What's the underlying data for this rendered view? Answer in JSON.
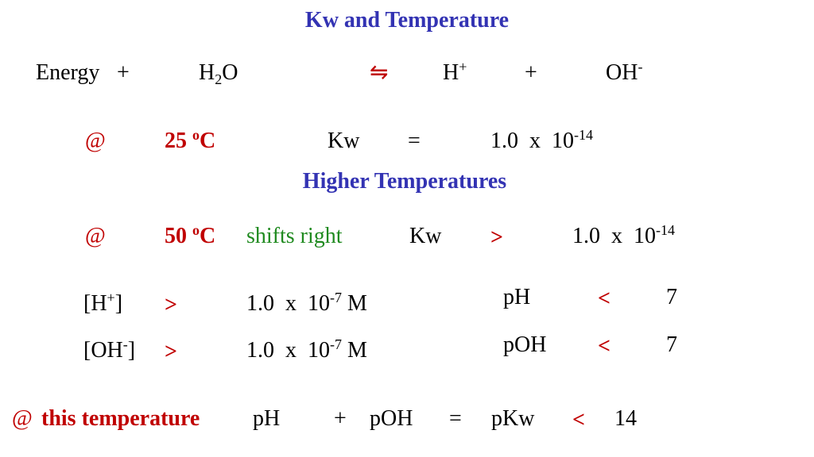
{
  "title": "Kw and Temperature",
  "equation": {
    "energy": "Energy",
    "plus1": "+",
    "water": [
      "H",
      "2",
      "O"
    ],
    "arrow": "⇋",
    "hydrogen": [
      "H",
      "+"
    ],
    "plus2": "+",
    "hydroxide": [
      "OH",
      "-"
    ]
  },
  "row_25": {
    "at": "@",
    "temp": [
      "25 ",
      "o",
      "C"
    ],
    "kw": "Kw",
    "op": "=",
    "value": [
      "1.0  x  10",
      "-14"
    ]
  },
  "subtitle": "Higher Temperatures",
  "row_50": {
    "at": "@",
    "temp": [
      "50 ",
      "o",
      "C"
    ],
    "note": "shifts right",
    "kw": "Kw",
    "op": ">",
    "value": [
      "1.0  x  10",
      "-14"
    ]
  },
  "concentrations": [
    {
      "ion": [
        "[H",
        "+",
        "]"
      ],
      "op": ">",
      "value": [
        "1.0  x  10",
        "-7",
        " M"
      ],
      "p_label": "pH",
      "p_op": "<",
      "p_value": "7"
    },
    {
      "ion": [
        "[OH",
        "-",
        "]"
      ],
      "op": ">",
      "value": [
        "1.0  x  10",
        "-7",
        " M"
      ],
      "p_label": "pOH",
      "p_op": "<",
      "p_value": "7"
    }
  ],
  "summary": {
    "at": "@",
    "condition": "this temperature",
    "ph": "pH",
    "plus": "+",
    "poh": "pOH",
    "eq": "=",
    "pkw": "pKw",
    "op": "<",
    "value": "14"
  }
}
